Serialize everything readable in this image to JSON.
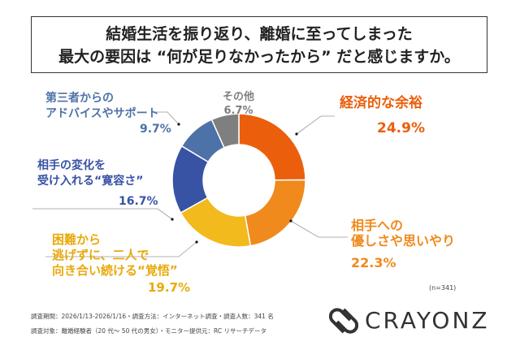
{
  "title": {
    "line1": "結婚生活を振り返り、離婚に至ってしまった",
    "line2": "最大の要因は “何が足りなかったから” だと感じますか。"
  },
  "chart_data": {
    "type": "pie",
    "donut": true,
    "title": "結婚生活を振り返り、離婚に至ってしまった最大の要因は “何が足りなかったから” だと感じますか。",
    "categories": [
      "経済的な余裕",
      "相手への優しさや思いやり",
      "困難から逃げずに、二人で向き合い続ける“覚悟”",
      "相手の変化を受け入れる“寛容さ”",
      "第三者からのアドバイスやサポート",
      "その他"
    ],
    "values": [
      24.9,
      22.3,
      19.7,
      16.7,
      9.7,
      6.7
    ],
    "colors": [
      "#EB5F0C",
      "#F08A1C",
      "#F2BA1C",
      "#3853A4",
      "#4D72A8",
      "#7F7F7F"
    ],
    "labels": [
      {
        "lines": [
          "経済的な余裕"
        ],
        "pct": "24.9%"
      },
      {
        "lines": [
          "相手への",
          "優しさや思いやり"
        ],
        "pct": "22.3%"
      },
      {
        "lines": [
          "困難から",
          "逃げずに、二人で",
          "向き合い続ける“覚悟”"
        ],
        "pct": "19.7%"
      },
      {
        "lines": [
          "相手の変化を",
          "受け入れる“寛容さ”"
        ],
        "pct": "16.7%"
      },
      {
        "lines": [
          "第三者からの",
          "アドバイスやサポート"
        ],
        "pct": "9.7%"
      },
      {
        "lines": [
          "その他"
        ],
        "pct": "6.7%"
      }
    ],
    "n_note": "(n=341)"
  },
  "footer": {
    "line1": "調査期間：2026/1/13-2026/1/16・調査方法：インターネット調査・調査人数：341 名",
    "line2": "調査対象：離婚経験者（20 代～ 50 代の男女）・モニター提供元：RC リサーチデータ"
  },
  "logo": {
    "text": "CRAYONZ"
  }
}
